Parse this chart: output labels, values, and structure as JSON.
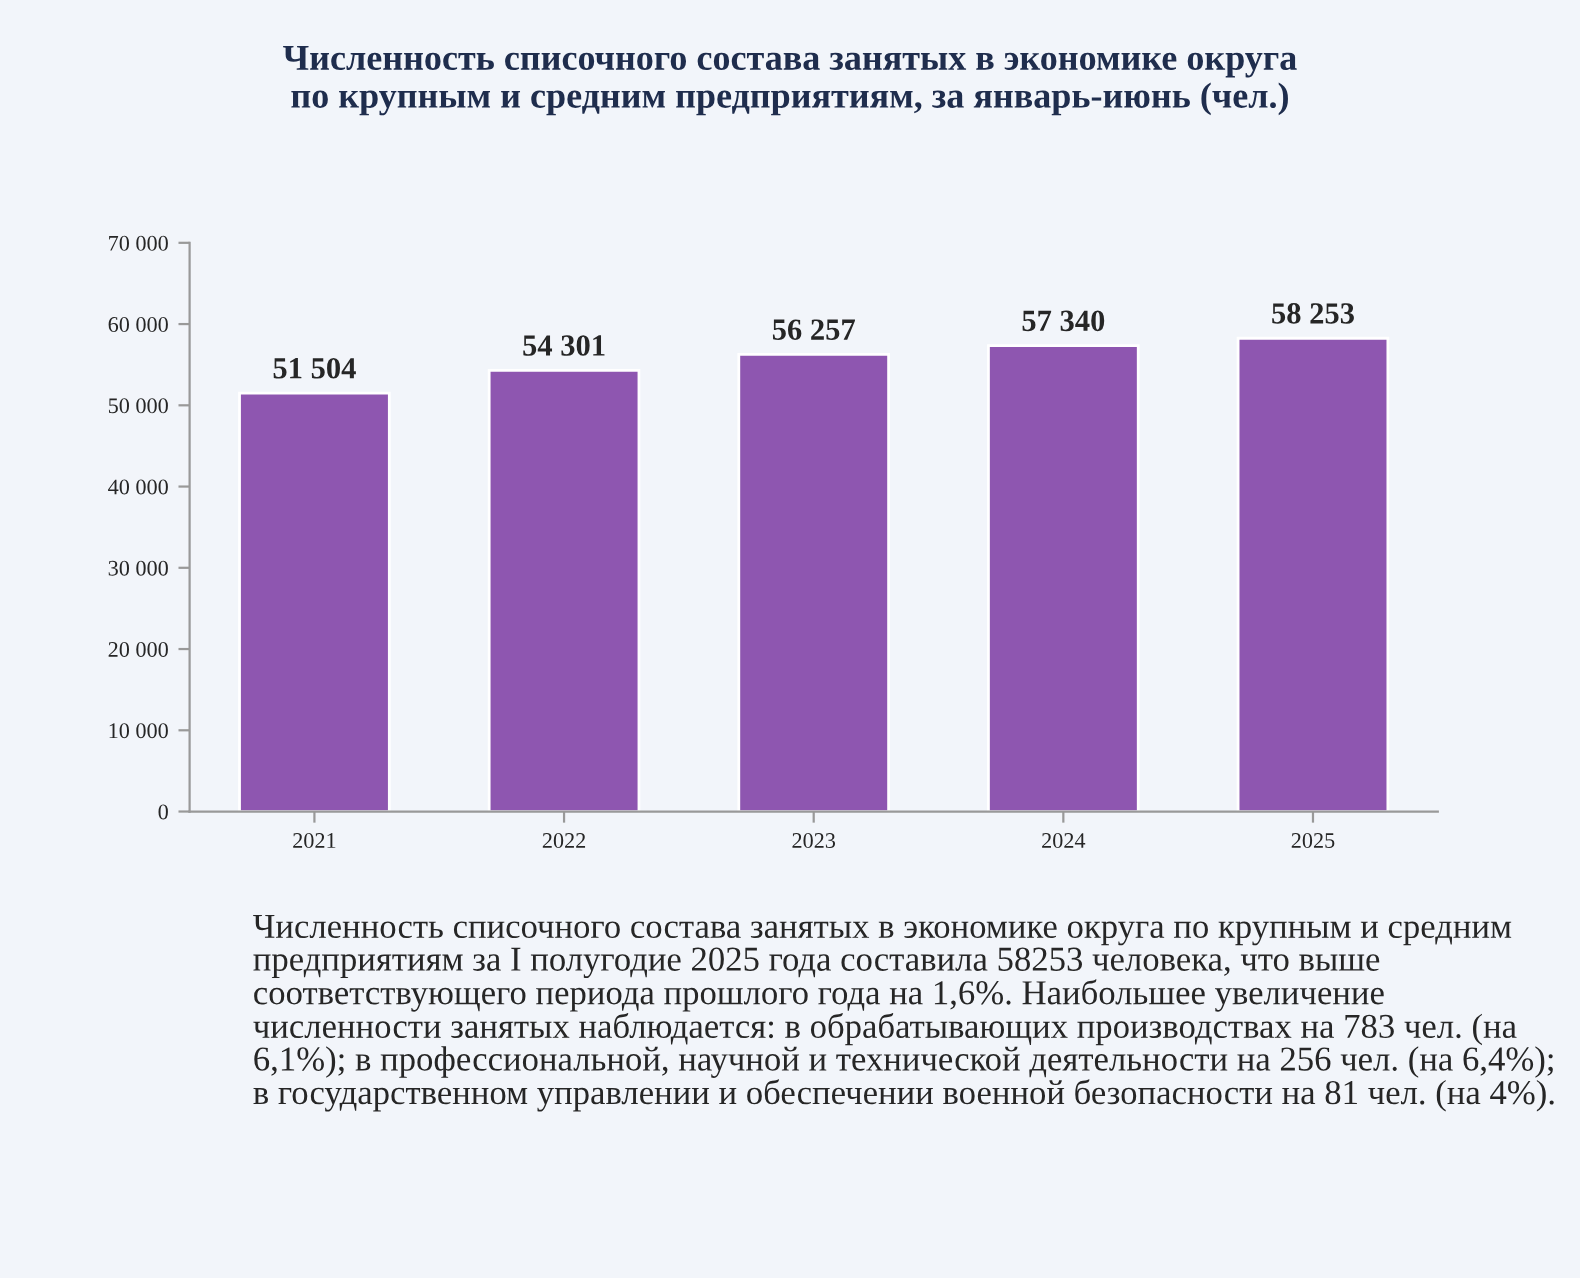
{
  "chart_data": {
    "type": "bar",
    "title": "Численность списочного состава занятых в экономике округа\nпо крупным и средним предприятиям, за январь-июнь (чел.)",
    "categories": [
      "2021",
      "2022",
      "2023",
      "2024",
      "2025"
    ],
    "values": [
      51504,
      54301,
      56257,
      57340,
      58253
    ],
    "value_labels": [
      "51 504",
      "54 301",
      "56 257",
      "57 340",
      "58 253"
    ],
    "color": "#8e56b0",
    "ylim": [
      0,
      70000
    ],
    "yticks": [
      0,
      {
        "value": 10000,
        "label": "10 000"
      },
      {
        "value": 20000,
        "label": "20 000"
      },
      {
        "value": 30000,
        "label": "30 000"
      },
      {
        "value": 40000,
        "label": "40 000"
      },
      {
        "value": 50000,
        "label": "50 000"
      },
      {
        "value": 60000,
        "label": "60 000"
      },
      {
        "value": 70000,
        "label": "70 000"
      }
    ],
    "grid": false,
    "legend": false,
    "annotations": [
      "Численность списочного состава занятых в экономике округа по крупным и средним предприятиям за I полугодие 2025 года составила 58253 человека, что выше соответствующего периода прошлого года на 1,6%. Наибольшее увеличение численности занятых наблюдается: в обрабатывающих производствах на 783 чел. (на 6,1%); в профессиональной, научной и технической деятельности на 256 чел. (на 6,4%); в государственном управлении и обеспечении военной безопасности на 81 чел. (на 4%)."
    ]
  }
}
